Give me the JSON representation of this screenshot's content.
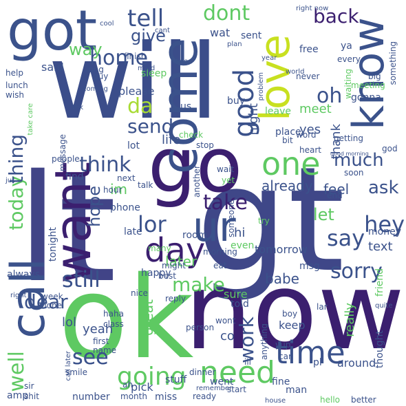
{
  "words": [
    {
      "text": "will",
      "color": "#3b4d8a",
      "rotate": false
    },
    {
      "text": "lt",
      "color": "#414487",
      "rotate": false
    },
    {
      "text": "gt",
      "color": "#3f4788",
      "rotate": false
    },
    {
      "text": "ok",
      "color": "#5ec962",
      "rotate": false
    },
    {
      "text": "now",
      "color": "#3b1f6f",
      "rotate": false
    },
    {
      "text": "got",
      "color": "#3b528b",
      "rotate": false
    },
    {
      "text": "go",
      "color": "#3b1f6f",
      "rotate": false
    },
    {
      "text": "know",
      "color": "#3b528b",
      "rotate": true
    },
    {
      "text": "love",
      "color": "#c8e020",
      "rotate": true
    },
    {
      "text": "come",
      "color": "#3b528b",
      "rotate": true
    },
    {
      "text": "call",
      "color": "#3b528b",
      "rotate": true
    },
    {
      "text": "want",
      "color": "#3b1f6f",
      "rotate": true
    },
    {
      "text": "ur",
      "color": "#3b528b",
      "rotate": false
    },
    {
      "text": "day",
      "color": "#3b1f6f",
      "rotate": false
    },
    {
      "text": "one",
      "color": "#5ec962",
      "rotate": false
    },
    {
      "text": "time",
      "color": "#3b528b",
      "rotate": false
    },
    {
      "text": "need",
      "color": "#5ec962",
      "rotate": false
    },
    {
      "text": "going",
      "color": "#5ec962",
      "rotate": false
    },
    {
      "text": "good",
      "color": "#3b528b",
      "rotate": true
    },
    {
      "text": "tell",
      "color": "#3b528b",
      "rotate": false
    },
    {
      "text": "dont",
      "color": "#5ec962",
      "rotate": false
    },
    {
      "text": "back",
      "color": "#3b1f6f",
      "rotate": false
    },
    {
      "text": "home",
      "color": "#3b528b",
      "rotate": false
    },
    {
      "text": "da",
      "color": "#a8db34",
      "rotate": false
    },
    {
      "text": "send",
      "color": "#3b528b",
      "rotate": false
    },
    {
      "text": "give",
      "color": "#3b528b",
      "rotate": false
    },
    {
      "text": "way",
      "color": "#5ec962",
      "rotate": false
    },
    {
      "text": "think",
      "color": "#3b528b",
      "rotate": false
    },
    {
      "text": "much",
      "color": "#3b528b",
      "rotate": false
    },
    {
      "text": "today",
      "color": "#5ec962",
      "rotate": true
    },
    {
      "text": "thing",
      "color": "#3b528b",
      "rotate": true
    },
    {
      "text": "hope",
      "color": "#3b528b",
      "rotate": true
    },
    {
      "text": "take",
      "color": "#3b1f6f",
      "rotate": false
    },
    {
      "text": "lor",
      "color": "#3b528b",
      "rotate": false
    },
    {
      "text": "ask",
      "color": "#3b528b",
      "rotate": false
    },
    {
      "text": "hey",
      "color": "#3b528b",
      "rotate": false
    },
    {
      "text": "say",
      "color": "#3b528b",
      "rotate": false
    },
    {
      "text": "sorry",
      "color": "#3b528b",
      "rotate": false
    },
    {
      "text": "still",
      "color": "#3b528b",
      "rotate": false
    },
    {
      "text": "make",
      "color": "#5ec962",
      "rotate": false
    },
    {
      "text": "see",
      "color": "#3b528b",
      "rotate": false
    },
    {
      "text": "well",
      "color": "#5ec962",
      "rotate": true
    },
    {
      "text": "work",
      "color": "#3b528b",
      "rotate": true
    },
    {
      "text": "dear",
      "color": "#3b528b",
      "rotate": false
    },
    {
      "text": "oh",
      "color": "#3b528b",
      "rotate": false
    },
    {
      "text": "let",
      "color": "#5ec962",
      "rotate": false
    },
    {
      "text": "im",
      "color": "#5ec962",
      "rotate": false
    },
    {
      "text": "later",
      "color": "#5ec962",
      "rotate": false
    },
    {
      "text": "already",
      "color": "#3b528b",
      "rotate": false
    },
    {
      "text": "feel",
      "color": "#3b528b",
      "rotate": false
    },
    {
      "text": "great",
      "color": "#5ec962",
      "rotate": true
    },
    {
      "text": "babe",
      "color": "#3b528b",
      "rotate": false
    },
    {
      "text": "lol",
      "color": "#3b528b",
      "rotate": false
    },
    {
      "text": "yeah",
      "color": "#3b528b",
      "rotate": false
    },
    {
      "text": "co",
      "color": "#3b528b",
      "rotate": false
    },
    {
      "text": "text",
      "color": "#3b528b",
      "rotate": false
    },
    {
      "text": "hi",
      "color": "#3b528b",
      "rotate": false
    },
    {
      "text": "yes",
      "color": "#3b528b",
      "rotate": false
    },
    {
      "text": "night",
      "color": "#3b528b",
      "rotate": true
    },
    {
      "text": "meet",
      "color": "#5ec962",
      "rotate": false
    },
    {
      "text": "thank",
      "color": "#3b528b",
      "rotate": true
    },
    {
      "text": "life",
      "color": "#3b528b",
      "rotate": false
    },
    {
      "text": "said",
      "color": "#3b528b",
      "rotate": false
    },
    {
      "text": "please",
      "color": "#3b528b",
      "rotate": false
    },
    {
      "text": "wat",
      "color": "#3b528b",
      "rotate": false
    },
    {
      "text": "sent",
      "color": "#3b528b",
      "rotate": false
    },
    {
      "text": "friend",
      "color": "#5ec962",
      "rotate": true
    },
    {
      "text": "tomorrow",
      "color": "#3b528b",
      "rotate": false
    },
    {
      "text": "really",
      "color": "#5ec962",
      "rotate": true
    },
    {
      "text": "keep",
      "color": "#3b528b",
      "rotate": false
    },
    {
      "text": "sure",
      "color": "#5ec962",
      "rotate": false
    },
    {
      "text": "even",
      "color": "#5ec962",
      "rotate": false
    },
    {
      "text": "money",
      "color": "#3b528b",
      "rotate": false
    },
    {
      "text": "msg",
      "color": "#3b528b",
      "rotate": false
    },
    {
      "text": "told",
      "color": "#3b528b",
      "rotate": false
    },
    {
      "text": "happy",
      "color": "#3b528b",
      "rotate": false
    },
    {
      "text": "phone",
      "color": "#3b528b",
      "rotate": false
    },
    {
      "text": "late",
      "color": "#3b528b",
      "rotate": false
    },
    {
      "text": "room",
      "color": "#3b528b",
      "rotate": false
    },
    {
      "text": "pick",
      "color": "#3b528b",
      "rotate": false
    },
    {
      "text": "stuff",
      "color": "#3b528b",
      "rotate": false
    },
    {
      "text": "went",
      "color": "#3b528b",
      "rotate": false
    },
    {
      "text": "fine",
      "color": "#3b528b",
      "rotate": false
    },
    {
      "text": "around",
      "color": "#3b528b",
      "rotate": false
    },
    {
      "text": "thought",
      "color": "#3b528b",
      "rotate": true
    },
    {
      "text": "see",
      "color": "#3b528b",
      "rotate": false
    },
    {
      "text": "miss",
      "color": "#3b528b",
      "rotate": false
    },
    {
      "text": "number",
      "color": "#3b528b",
      "rotate": false
    },
    {
      "text": "ready",
      "color": "#3b528b",
      "rotate": false
    },
    {
      "text": "smile",
      "color": "#3b528b",
      "rotate": false
    },
    {
      "text": "dinner",
      "color": "#3b528b",
      "rotate": false
    },
    {
      "text": "anything",
      "color": "#3b528b",
      "rotate": true
    },
    {
      "text": "man",
      "color": "#3b528b",
      "rotate": false
    },
    {
      "text": "pl",
      "color": "#3b528b",
      "rotate": false
    },
    {
      "text": "tonight",
      "color": "#3b528b",
      "rotate": true
    },
    {
      "text": "always",
      "color": "#3b528b",
      "rotate": false
    },
    {
      "text": "amp",
      "color": "#3b528b",
      "rotate": false
    },
    {
      "text": "free",
      "color": "#3b528b",
      "rotate": false
    },
    {
      "text": "ya",
      "color": "#3b528b",
      "rotate": false
    },
    {
      "text": "every",
      "color": "#3b528b",
      "rotate": false
    },
    {
      "text": "something",
      "color": "#3b528b",
      "rotate": true
    },
    {
      "text": "never",
      "color": "#3b528b",
      "rotate": false
    },
    {
      "text": "big",
      "color": "#3b528b",
      "rotate": false
    },
    {
      "text": "gonna",
      "color": "#3b528b",
      "rotate": false
    },
    {
      "text": "meeting",
      "color": "#5ec962",
      "rotate": false
    },
    {
      "text": "waiting",
      "color": "#5ec962",
      "rotate": true
    },
    {
      "text": "leave",
      "color": "#5ec962",
      "rotate": false
    },
    {
      "text": "buy",
      "color": "#3b528b",
      "rotate": false
    },
    {
      "text": "us",
      "color": "#3b528b",
      "rotate": false
    },
    {
      "text": "guy",
      "color": "#3b528b",
      "rotate": false
    },
    {
      "text": "sleep",
      "color": "#5ec962",
      "rotate": false
    },
    {
      "text": "finish",
      "color": "#3b528b",
      "rotate": false
    },
    {
      "text": "long",
      "color": "#3b528b",
      "rotate": false
    },
    {
      "text": "help",
      "color": "#3b528b",
      "rotate": false
    },
    {
      "text": "lunch",
      "color": "#3b528b",
      "rotate": false
    },
    {
      "text": "wish",
      "color": "#3b528b",
      "rotate": false
    },
    {
      "text": "message",
      "color": "#3b528b",
      "rotate": true
    },
    {
      "text": "people",
      "color": "#3b528b",
      "rotate": false
    },
    {
      "text": "lot",
      "color": "#3b528b",
      "rotate": false
    },
    {
      "text": "check",
      "color": "#5ec962",
      "rotate": false
    },
    {
      "text": "stop",
      "color": "#3b528b",
      "rotate": false
    },
    {
      "text": "place",
      "color": "#3b528b",
      "rotate": false
    },
    {
      "text": "bit",
      "color": "#3b528b",
      "rotate": false
    },
    {
      "text": "word",
      "color": "#3b528b",
      "rotate": false
    },
    {
      "text": "heart",
      "color": "#3b528b",
      "rotate": false
    },
    {
      "text": "getting",
      "color": "#3b528b",
      "rotate": false
    },
    {
      "text": "god",
      "color": "#3b528b",
      "rotate": false
    },
    {
      "text": "find",
      "color": "#3b528b",
      "rotate": false
    },
    {
      "text": "next",
      "color": "#3b528b",
      "rotate": false
    },
    {
      "text": "talk",
      "color": "#3b528b",
      "rotate": false
    },
    {
      "text": "hour",
      "color": "#3b528b",
      "rotate": false
    },
    {
      "text": "another",
      "color": "#3b528b",
      "rotate": true
    },
    {
      "text": "wait",
      "color": "#3b528b",
      "rotate": false
    },
    {
      "text": "yet",
      "color": "#5ec962",
      "rotate": false
    },
    {
      "text": "someone",
      "color": "#3b528b",
      "rotate": true
    },
    {
      "text": "soon",
      "color": "#3b528b",
      "rotate": false
    },
    {
      "text": "end",
      "color": "#3b528b",
      "rotate": false
    },
    {
      "text": "many",
      "color": "#5ec962",
      "rotate": false
    },
    {
      "text": "try",
      "color": "#5ec962",
      "rotate": false
    },
    {
      "text": "morning",
      "color": "#3b528b",
      "rotate": false
    },
    {
      "text": "eat",
      "color": "#3b528b",
      "rotate": false
    },
    {
      "text": "might",
      "color": "#3b528b",
      "rotate": false
    },
    {
      "text": "best",
      "color": "#3b528b",
      "rotate": false
    },
    {
      "text": "week",
      "color": "#3b528b",
      "rotate": false
    },
    {
      "text": "done",
      "color": "#3b528b",
      "rotate": false
    },
    {
      "text": "nice",
      "color": "#3b528b",
      "rotate": false
    },
    {
      "text": "reply",
      "color": "#3b528b",
      "rotate": false
    },
    {
      "text": "haha",
      "color": "#3b528b",
      "rotate": false
    },
    {
      "text": "class",
      "color": "#3b528b",
      "rotate": false
    },
    {
      "text": "person",
      "color": "#3b528b",
      "rotate": false
    },
    {
      "text": "wont",
      "color": "#3b528b",
      "rotate": false
    },
    {
      "text": "boy",
      "color": "#3b528b",
      "rotate": false
    },
    {
      "text": "yup",
      "color": "#3b528b",
      "rotate": false
    },
    {
      "text": "car",
      "color": "#3b528b",
      "rotate": false
    },
    {
      "text": "first",
      "color": "#3b528b",
      "rotate": false
    },
    {
      "text": "name",
      "color": "#3b528b",
      "rotate": false
    },
    {
      "text": "start",
      "color": "#3b528b",
      "rotate": false
    },
    {
      "text": "ill",
      "color": "#3b528b",
      "rotate": false
    },
    {
      "text": "ah",
      "color": "#3b528b",
      "rotate": false
    },
    {
      "text": "month",
      "color": "#3b528b",
      "rotate": false
    },
    {
      "text": "shit",
      "color": "#3b528b",
      "rotate": false
    },
    {
      "text": "sir",
      "color": "#3b528b",
      "rotate": false
    },
    {
      "text": "hello",
      "color": "#5ec962",
      "rotate": false
    },
    {
      "text": "better",
      "color": "#3b528b",
      "rotate": false
    },
    {
      "text": "house",
      "color": "#3b528b",
      "rotate": false
    },
    {
      "text": "quite",
      "color": "#3b528b",
      "rotate": false
    },
    {
      "text": "lar",
      "color": "#3b528b",
      "rotate": false
    },
    {
      "text": "right",
      "color": "#3b528b",
      "rotate": false
    },
    {
      "text": "right now",
      "color": "#3b528b",
      "rotate": false
    },
    {
      "text": "cant",
      "color": "#3b528b",
      "rotate": false
    },
    {
      "text": "mind",
      "color": "#3b528b",
      "rotate": false
    },
    {
      "text": "two",
      "color": "#3b528b",
      "rotate": false
    },
    {
      "text": "plan",
      "color": "#3b528b",
      "rotate": false
    },
    {
      "text": "year",
      "color": "#3b528b",
      "rotate": false
    },
    {
      "text": "world",
      "color": "#3b528b",
      "rotate": false
    },
    {
      "text": "problem",
      "color": "#3b528b",
      "rotate": true
    },
    {
      "text": "coming",
      "color": "#3b528b",
      "rotate": false
    },
    {
      "text": "take care",
      "color": "#5ec962",
      "rotate": true
    },
    {
      "text": "thk",
      "color": "#3b528b",
      "rotate": false
    },
    {
      "text": "jus",
      "color": "#3b528b",
      "rotate": false
    },
    {
      "text": "cool",
      "color": "#3b528b",
      "rotate": false
    },
    {
      "text": "good morning",
      "color": "#3b528b",
      "rotate": false
    },
    {
      "text": "call later",
      "color": "#3b528b",
      "rotate": true
    },
    {
      "text": "remember",
      "color": "#3b528b",
      "rotate": false
    }
  ]
}
